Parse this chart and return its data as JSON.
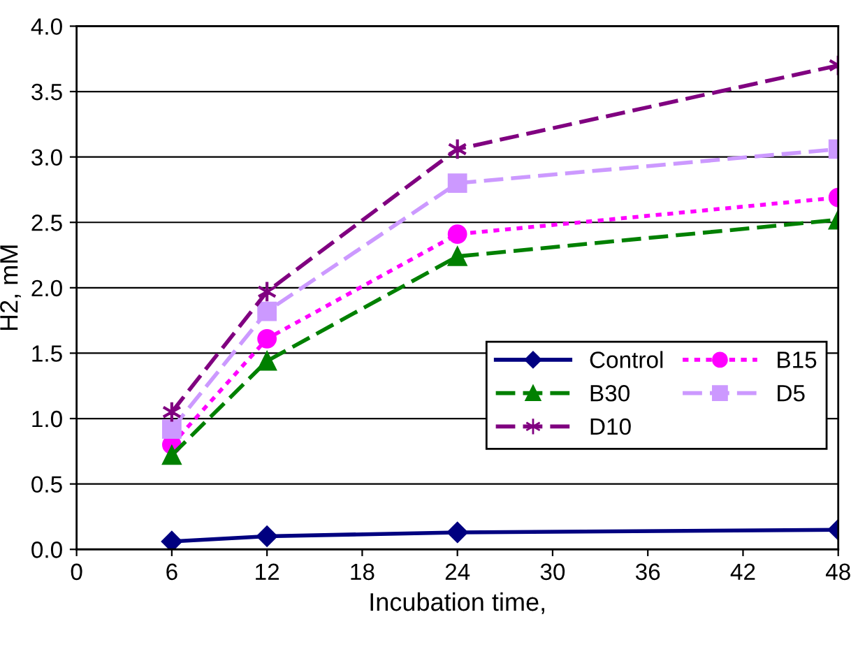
{
  "chart_data": {
    "type": "line",
    "xlabel": "Incubation time,",
    "ylabel": "H2, mM",
    "x": [
      6,
      12,
      24,
      48
    ],
    "xlim": [
      0,
      48
    ],
    "xticks": [
      0,
      6,
      12,
      18,
      24,
      30,
      36,
      42,
      48
    ],
    "ylim": [
      0,
      4
    ],
    "yticks": [
      {
        "value": 0,
        "label": "0.0"
      },
      {
        "value": 0.5,
        "label": "0.5"
      },
      {
        "value": 1,
        "label": "1.0"
      },
      {
        "value": 1.5,
        "label": "1.5"
      },
      {
        "value": 2,
        "label": "2.0"
      },
      {
        "value": 2.5,
        "label": "2.5"
      },
      {
        "value": 3,
        "label": "3.0"
      },
      {
        "value": 3.5,
        "label": "3.5"
      },
      {
        "value": 4,
        "label": "4.0"
      }
    ],
    "grid": "y",
    "legend": "bottom right",
    "series": [
      {
        "name": "Control",
        "color": "#000080",
        "values": [
          0.06,
          0.1,
          0.13,
          0.15
        ],
        "marker": "diamond",
        "line_style": "solid"
      },
      {
        "name": "B15",
        "color": "#ff00ff",
        "values": [
          0.8,
          1.61,
          2.41,
          2.69
        ],
        "marker": "circle",
        "line_style": "dotted"
      },
      {
        "name": "B30",
        "color": "#008000",
        "values": [
          0.72,
          1.44,
          2.24,
          2.52
        ],
        "marker": "triangle",
        "line_style": "dashed"
      },
      {
        "name": "D5",
        "color": "#cc99ff",
        "values": [
          0.92,
          1.82,
          2.8,
          3.06
        ],
        "marker": "square",
        "line_style": "dashed"
      },
      {
        "name": "D10",
        "color": "#800080",
        "values": [
          1.05,
          1.97,
          3.06,
          3.7
        ],
        "marker": "cross",
        "line_style": "dashed"
      }
    ]
  }
}
